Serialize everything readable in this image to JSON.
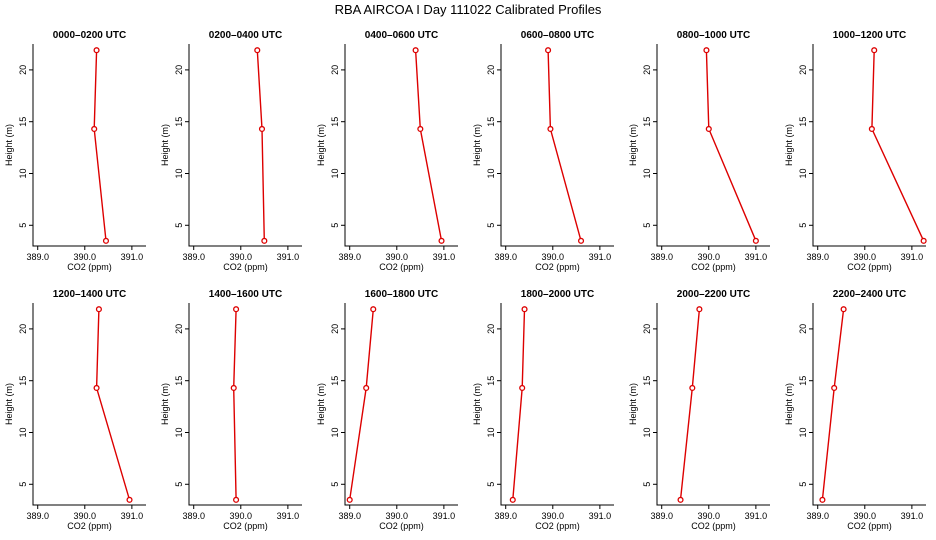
{
  "figure": {
    "title": "RBA AIRCOA I  Day 111022  Calibrated Profiles",
    "series_color": "#dd0000"
  },
  "chart_data": {
    "type": "line",
    "x_ticks": [
      "389.0",
      "390.0",
      "391.0"
    ],
    "y_ticks": [
      "5",
      "10",
      "15",
      "20"
    ],
    "panels": [
      {
        "title": "0000–0200 UTC",
        "xlabel": "CO2 (ppm)",
        "ylabel": "Height (m)",
        "xlim": [
          388.9,
          391.3
        ],
        "ylim": [
          3,
          22.5
        ],
        "x": [
          390.45,
          390.2,
          390.25
        ],
        "y": [
          3.5,
          14.3,
          21.9
        ]
      },
      {
        "title": "0200–0400 UTC",
        "xlabel": "CO2 (ppm)",
        "ylabel": "Height (m)",
        "xlim": [
          388.9,
          391.3
        ],
        "ylim": [
          3,
          22.5
        ],
        "x": [
          390.5,
          390.45,
          390.35
        ],
        "y": [
          3.5,
          14.3,
          21.9
        ]
      },
      {
        "title": "0400–0600 UTC",
        "xlabel": "CO2 (ppm)",
        "ylabel": "Height (m)",
        "xlim": [
          388.9,
          391.3
        ],
        "ylim": [
          3,
          22.5
        ],
        "x": [
          390.95,
          390.5,
          390.4
        ],
        "y": [
          3.5,
          14.3,
          21.9
        ]
      },
      {
        "title": "0600–0800 UTC",
        "xlabel": "CO2 (ppm)",
        "ylabel": "Height (m)",
        "xlim": [
          388.9,
          391.3
        ],
        "ylim": [
          3,
          22.5
        ],
        "x": [
          390.6,
          389.95,
          389.9
        ],
        "y": [
          3.5,
          14.3,
          21.9
        ]
      },
      {
        "title": "0800–1000 UTC",
        "xlabel": "CO2 (ppm)",
        "ylabel": "Height (m)",
        "xlim": [
          388.9,
          391.3
        ],
        "ylim": [
          3,
          22.5
        ],
        "x": [
          391.0,
          390.0,
          389.95
        ],
        "y": [
          3.5,
          14.3,
          21.9
        ]
      },
      {
        "title": "1000–1200 UTC",
        "xlabel": "CO2 (ppm)",
        "ylabel": "Height (m)",
        "xlim": [
          388.9,
          391.3
        ],
        "ylim": [
          3,
          22.5
        ],
        "x": [
          391.25,
          390.15,
          390.2
        ],
        "y": [
          3.5,
          14.3,
          21.9
        ]
      },
      {
        "title": "1200–1400 UTC",
        "xlabel": "CO2 (ppm)",
        "ylabel": "Height (m)",
        "xlim": [
          388.9,
          391.3
        ],
        "ylim": [
          3,
          22.5
        ],
        "x": [
          390.95,
          390.25,
          390.3
        ],
        "y": [
          3.5,
          14.3,
          21.9
        ]
      },
      {
        "title": "1400–1600 UTC",
        "xlabel": "CO2 (ppm)",
        "ylabel": "Height (m)",
        "xlim": [
          388.9,
          391.3
        ],
        "ylim": [
          3,
          22.5
        ],
        "x": [
          389.9,
          389.85,
          389.9
        ],
        "y": [
          3.5,
          14.3,
          21.9
        ]
      },
      {
        "title": "1600–1800 UTC",
        "xlabel": "CO2 (ppm)",
        "ylabel": "Height (m)",
        "xlim": [
          388.9,
          391.3
        ],
        "ylim": [
          3,
          22.5
        ],
        "x": [
          389.0,
          389.35,
          389.5
        ],
        "y": [
          3.5,
          14.3,
          21.9
        ]
      },
      {
        "title": "1800–2000 UTC",
        "xlabel": "CO2 (ppm)",
        "ylabel": "Height (m)",
        "xlim": [
          388.9,
          391.3
        ],
        "ylim": [
          3,
          22.5
        ],
        "x": [
          389.15,
          389.35,
          389.4
        ],
        "y": [
          3.5,
          14.3,
          21.9
        ]
      },
      {
        "title": "2000–2200 UTC",
        "xlabel": "CO2 (ppm)",
        "ylabel": "Height (m)",
        "xlim": [
          388.9,
          391.3
        ],
        "ylim": [
          3,
          22.5
        ],
        "x": [
          389.4,
          389.65,
          389.8
        ],
        "y": [
          3.5,
          14.3,
          21.9
        ]
      },
      {
        "title": "2200–2400 UTC",
        "xlabel": "CO2 (ppm)",
        "ylabel": "Height (m)",
        "xlim": [
          388.9,
          391.3
        ],
        "ylim": [
          3,
          22.5
        ],
        "x": [
          389.1,
          389.35,
          389.55
        ],
        "y": [
          3.5,
          14.3,
          21.9
        ]
      }
    ]
  }
}
